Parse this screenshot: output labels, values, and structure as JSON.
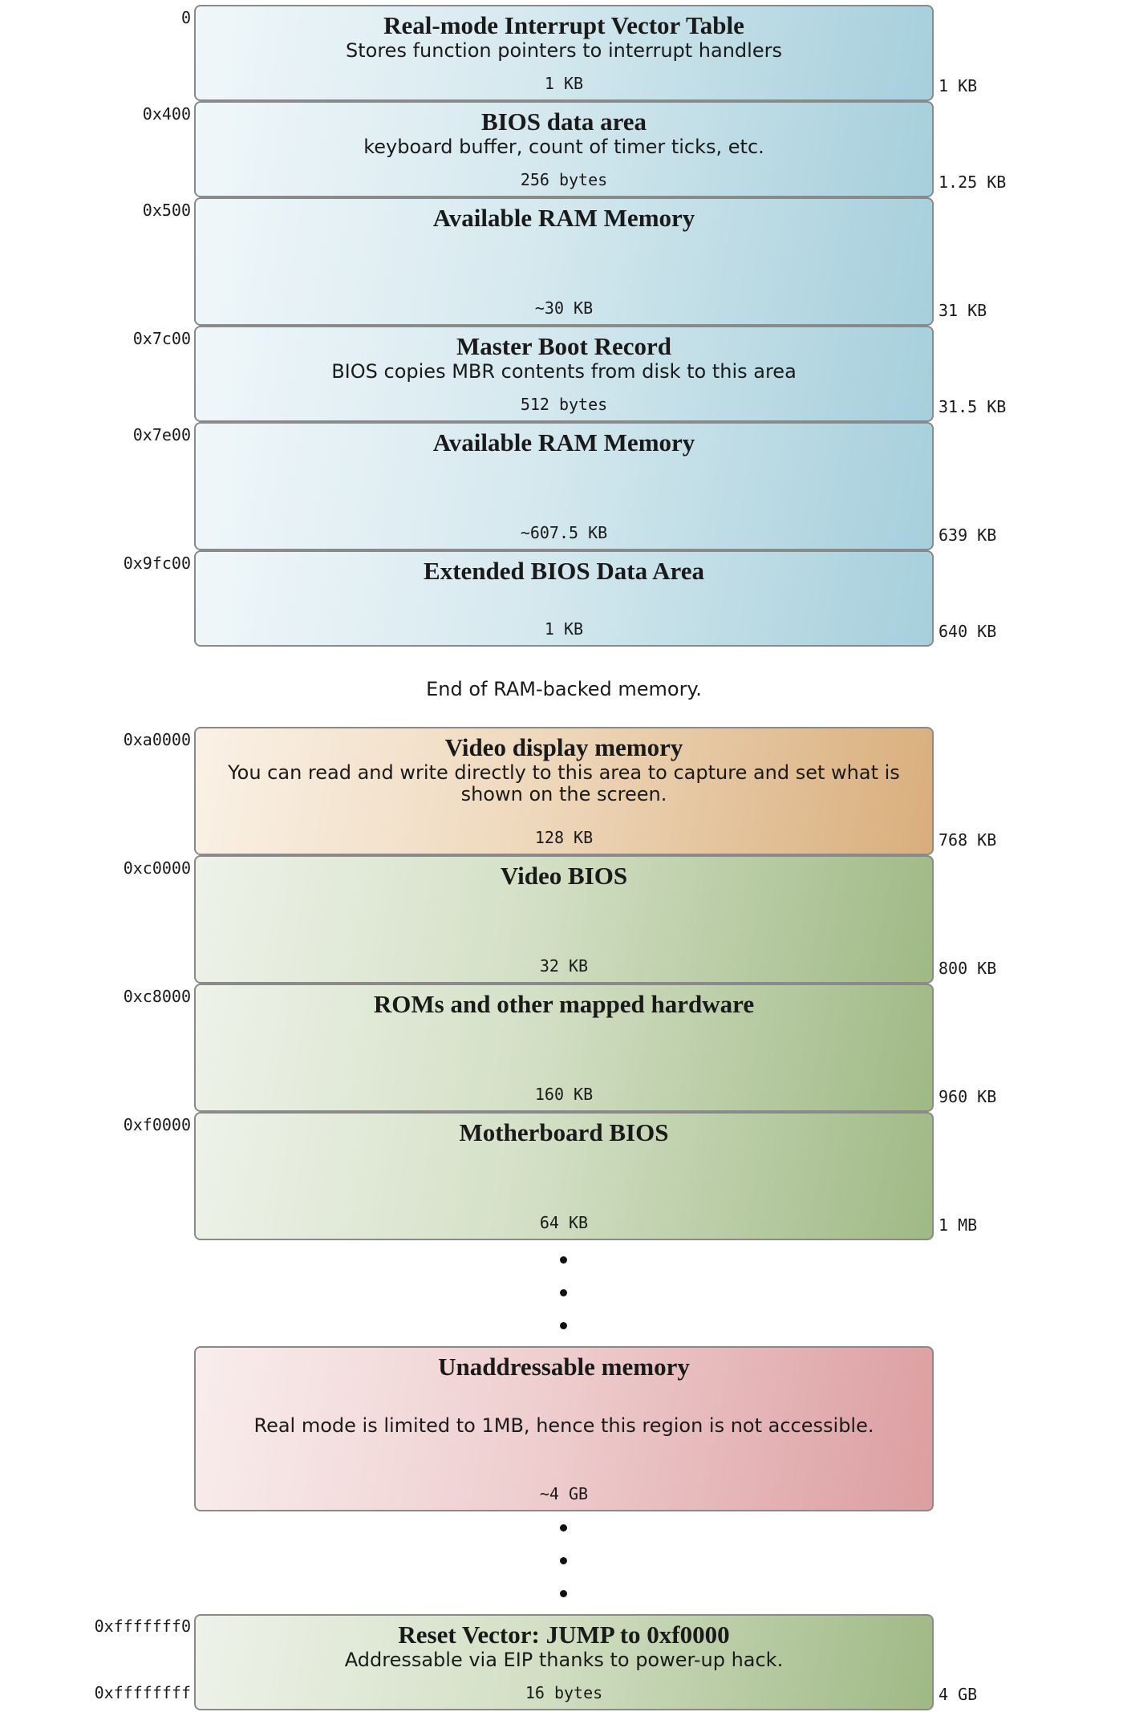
{
  "regions": [
    {
      "title": "Real-mode Interrupt Vector Table",
      "description": "Stores function pointers to interrupt handlers",
      "size": "1 KB",
      "start_address": "0",
      "end_cumulative": "1 KB",
      "theme": "blue"
    },
    {
      "title": "BIOS data area",
      "description": "keyboard buffer, count of timer ticks, etc.",
      "size": "256 bytes",
      "start_address": "0x400",
      "end_cumulative": "1.25 KB",
      "theme": "blue"
    },
    {
      "title": "Available RAM Memory",
      "description": "",
      "size": "~30 KB",
      "start_address": "0x500",
      "end_cumulative": "31 KB",
      "theme": "blue"
    },
    {
      "title": "Master Boot Record",
      "description": "BIOS copies MBR contents from disk to this area",
      "size": "512 bytes",
      "start_address": "0x7c00",
      "end_cumulative": "31.5 KB",
      "theme": "blue"
    },
    {
      "title": "Available RAM Memory",
      "description": "",
      "size": "~607.5 KB",
      "start_address": "0x7e00",
      "end_cumulative": "639 KB",
      "theme": "blue"
    },
    {
      "title": "Extended BIOS Data Area",
      "description": "",
      "size": "1 KB",
      "start_address": "0x9fc00",
      "end_cumulative": "640 KB",
      "theme": "blue"
    },
    {
      "title": "Video display memory",
      "description": "You can read and write directly to this area to capture and set what is shown on the screen.",
      "size": "128 KB",
      "start_address": "0xa0000",
      "end_cumulative": "768 KB",
      "theme": "orange"
    },
    {
      "title": "Video BIOS",
      "description": "",
      "size": "32 KB",
      "start_address": "0xc0000",
      "end_cumulative": "800 KB",
      "theme": "green"
    },
    {
      "title": "ROMs and other mapped hardware",
      "description": "",
      "size": "160 KB",
      "start_address": "0xc8000",
      "end_cumulative": "960 KB",
      "theme": "green"
    },
    {
      "title": "Motherboard BIOS",
      "description": "",
      "size": "64 KB",
      "start_address": "0xf0000",
      "end_cumulative": "1 MB",
      "theme": "green"
    },
    {
      "title": "Unaddressable memory",
      "description": "Real mode is limited to 1MB, hence this region is not accessible.",
      "size": "~4 GB",
      "start_address": "",
      "end_cumulative": "",
      "theme": "red"
    },
    {
      "title": "Reset Vector: JUMP to 0xf0000",
      "description": "Addressable via EIP thanks to power-up hack.",
      "size": "16 bytes",
      "start_address": "0xfffffff0",
      "end_address": "0xffffffff",
      "end_cumulative": "4 GB",
      "theme": "green"
    }
  ],
  "ram_boundary_note": "End of RAM-backed memory.",
  "colors": {
    "blue": "#a6cfdc",
    "orange": "#d9ae7c",
    "green": "#9fb985",
    "red": "#dc9ea1",
    "border": "#8a8a8a"
  }
}
